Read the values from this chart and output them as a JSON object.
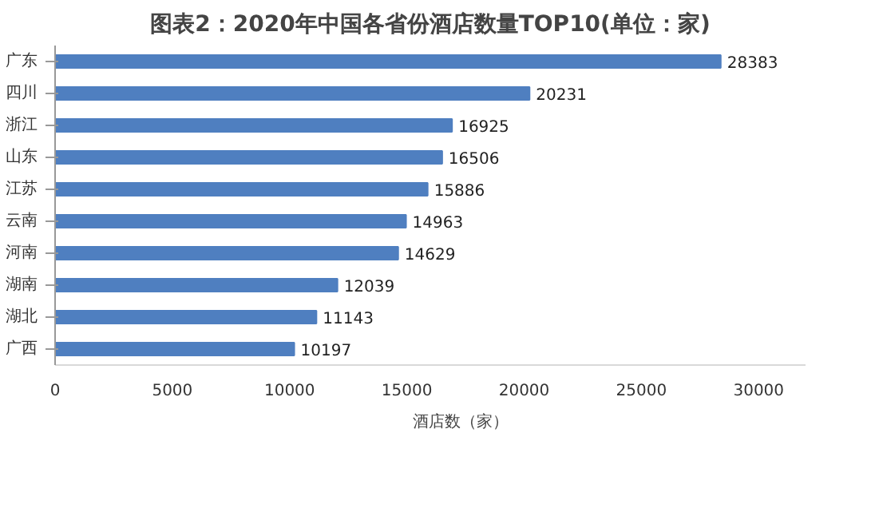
{
  "chart_data": {
    "type": "bar",
    "orientation": "horizontal",
    "title": "图表2：2020年中国各省份酒店数量TOP10(单位：家)",
    "categories": [
      "广东",
      "四川",
      "浙江",
      "山东",
      "江苏",
      "云南",
      "河南",
      "湖南",
      "湖北",
      "广西"
    ],
    "series": [
      {
        "name": "酒店数（家）",
        "color": "#4f7fc0",
        "values": [
          28383,
          20231,
          16925,
          16506,
          15886,
          14963,
          14629,
          12039,
          11143,
          10197
        ]
      }
    ],
    "xlim": [
      0,
      32000
    ],
    "xticks": [
      0,
      5000,
      10000,
      15000,
      20000,
      25000,
      30000
    ],
    "data_labels": true,
    "legend": "bottom",
    "grid": false
  }
}
